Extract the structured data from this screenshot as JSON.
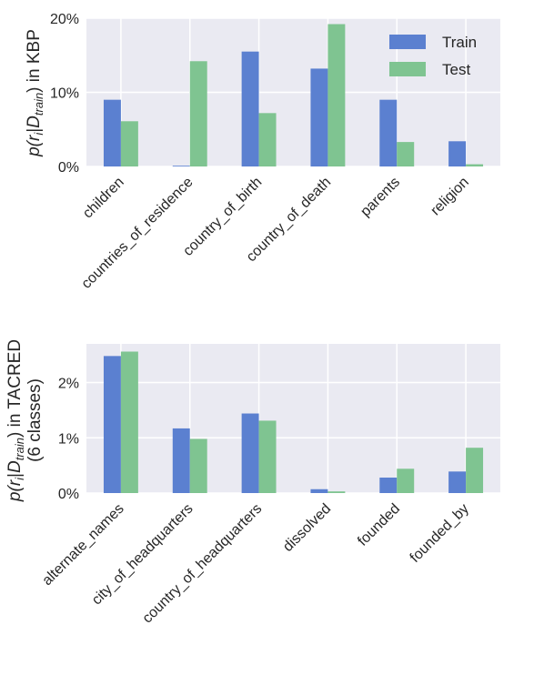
{
  "chart_data": [
    {
      "type": "bar",
      "ylabel_parts": [
        "p(r",
        "i",
        "|",
        "D",
        "train",
        ") in KBP"
      ],
      "yticks": [
        0,
        10,
        20
      ],
      "ytick_labels": [
        "0%",
        "10%",
        "20%"
      ],
      "ylim": [
        0,
        20
      ],
      "grid": true,
      "legend_position": "top-right",
      "categories": [
        "children",
        "countries_of_residence",
        "country_of_birth",
        "country_of_death",
        "parents",
        "religion"
      ],
      "series": [
        {
          "name": "Train",
          "color": "#5b80d0",
          "values": [
            9.0,
            0.1,
            15.5,
            13.2,
            9.0,
            3.4
          ]
        },
        {
          "name": "Test",
          "color": "#7fc491",
          "values": [
            6.1,
            14.2,
            7.2,
            19.2,
            3.3,
            0.3
          ]
        }
      ]
    },
    {
      "type": "bar",
      "ylabel_parts": [
        "p(r",
        "i",
        "|",
        "D",
        "train",
        ") in TACRED"
      ],
      "ylabel_line2": "(6 classes)",
      "yticks": [
        0,
        1,
        2
      ],
      "ytick_labels": [
        "0%",
        "1%",
        "2%"
      ],
      "ylim": [
        0,
        2.7
      ],
      "grid": true,
      "categories": [
        "alternate_names",
        "city_of_headquarters",
        "country_of_headquarters",
        "dissolved",
        "founded",
        "founded_by"
      ],
      "series": [
        {
          "name": "Train",
          "color": "#5b80d0",
          "values": [
            2.48,
            1.17,
            1.44,
            0.07,
            0.28,
            0.39
          ]
        },
        {
          "name": "Test",
          "color": "#7fc491",
          "values": [
            2.56,
            0.98,
            1.31,
            0.03,
            0.44,
            0.82
          ]
        }
      ]
    }
  ]
}
